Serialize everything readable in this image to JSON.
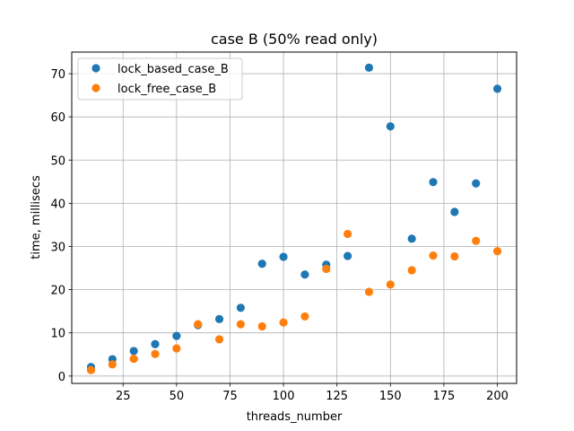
{
  "chart_data": {
    "type": "scatter",
    "title": "case B (50% read only)",
    "xlabel": "threads_number",
    "ylabel": "time, millisecs",
    "xlim": [
      1,
      209
    ],
    "ylim": [
      -1.7,
      75
    ],
    "xticks": [
      25,
      50,
      75,
      100,
      125,
      150,
      175,
      200
    ],
    "yticks": [
      0,
      10,
      20,
      30,
      40,
      50,
      60,
      70
    ],
    "grid": true,
    "legend_position": "top-left",
    "series": [
      {
        "name": "lock_based_case_B",
        "color": "#1f77b4",
        "x": [
          10,
          20,
          30,
          40,
          50,
          60,
          70,
          80,
          90,
          100,
          110,
          120,
          130,
          140,
          150,
          160,
          170,
          180,
          190,
          200
        ],
        "y": [
          2.1,
          3.9,
          5.8,
          7.4,
          9.3,
          11.8,
          13.2,
          15.8,
          26.0,
          27.6,
          23.5,
          25.8,
          27.8,
          71.4,
          57.8,
          31.8,
          44.9,
          38.0,
          44.6,
          66.5
        ]
      },
      {
        "name": "lock_free_case_B",
        "color": "#ff7f0e",
        "x": [
          10,
          20,
          30,
          40,
          50,
          60,
          70,
          80,
          90,
          100,
          110,
          120,
          130,
          140,
          150,
          160,
          170,
          180,
          190,
          200
        ],
        "y": [
          1.4,
          2.7,
          4.0,
          5.1,
          6.4,
          12.0,
          8.5,
          12.0,
          11.5,
          12.4,
          13.8,
          24.8,
          32.9,
          19.5,
          21.2,
          24.5,
          27.9,
          27.7,
          31.3,
          28.9
        ]
      }
    ]
  }
}
